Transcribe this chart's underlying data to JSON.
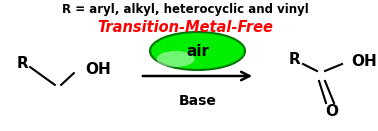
{
  "bg_color": "#ffffff",
  "arrow_color": "#000000",
  "text_color": "#000000",
  "red_color": "#ff0000",
  "green_color": "#00ee00",
  "green_edge": "#007700",
  "base_label": "Base",
  "air_label": "air",
  "tmf_label": "Transition-Metal-Free",
  "r_label": "R = aryl, alkyl, heterocyclic and vinyl",
  "fig_width": 3.78,
  "fig_height": 1.31,
  "dpi": 100
}
